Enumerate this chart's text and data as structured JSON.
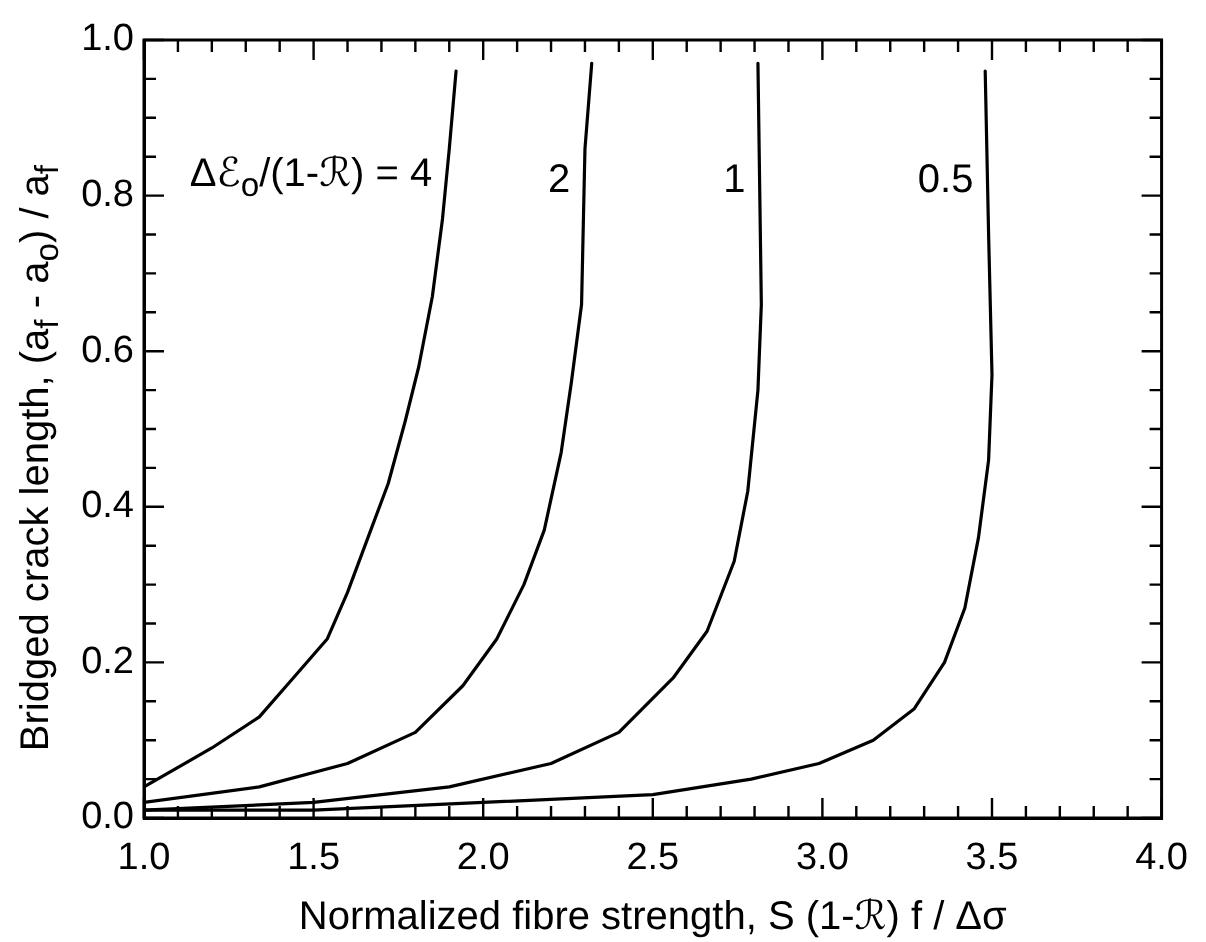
{
  "chart_data": {
    "type": "line",
    "xlabel": "Normalized fibre strength, S (1-ℛ) f / Δσ",
    "ylabel": "Bridged crack length, (a$_{f}$ - a$_{o}$) / a$_{f}$",
    "xlim": [
      1,
      4
    ],
    "ylim": [
      0,
      1
    ],
    "xticks": [
      {
        "value": 1,
        "label": "1.0"
      },
      {
        "value": 1.1,
        "label": null
      },
      {
        "value": 1.2,
        "label": null
      },
      {
        "value": 1.3,
        "label": null
      },
      {
        "value": 1.4,
        "label": null
      },
      1.5,
      {
        "value": 1.6,
        "label": null
      },
      {
        "value": 1.7,
        "label": null
      },
      {
        "value": 1.8,
        "label": null
      },
      {
        "value": 1.9,
        "label": null
      },
      {
        "value": 2,
        "label": "2.0"
      },
      {
        "value": 2.1,
        "label": null
      },
      {
        "value": 2.2,
        "label": null
      },
      {
        "value": 2.3,
        "label": null
      },
      {
        "value": 2.4,
        "label": null
      },
      2.5,
      {
        "value": 2.6,
        "label": null
      },
      {
        "value": 2.7,
        "label": null
      },
      {
        "value": 2.8,
        "label": null
      },
      {
        "value": 2.9,
        "label": null
      },
      {
        "value": 3,
        "label": "3.0"
      },
      {
        "value": 3.1,
        "label": null
      },
      {
        "value": 3.2,
        "label": null
      },
      {
        "value": 3.3,
        "label": null
      },
      {
        "value": 3.4,
        "label": null
      },
      3.5,
      {
        "value": 3.6,
        "label": null
      },
      {
        "value": 3.7,
        "label": null
      },
      {
        "value": 3.8,
        "label": null
      },
      {
        "value": 3.9,
        "label": null
      },
      {
        "value": 4,
        "label": "4.0"
      }
    ],
    "yticks": [
      {
        "value": 0,
        "label": "0.0"
      },
      {
        "value": 0.05,
        "label": null
      },
      {
        "value": 0.1,
        "label": null
      },
      {
        "value": 0.15,
        "label": null
      },
      0.2,
      {
        "value": 0.25,
        "label": null
      },
      {
        "value": 0.3,
        "label": null
      },
      {
        "value": 0.35,
        "label": null
      },
      0.4,
      {
        "value": 0.45,
        "label": null
      },
      {
        "value": 0.5,
        "label": null
      },
      {
        "value": 0.55,
        "label": null
      },
      0.6,
      {
        "value": 0.65,
        "label": null
      },
      {
        "value": 0.7,
        "label": null
      },
      {
        "value": 0.75,
        "label": null
      },
      0.8,
      {
        "value": 0.85,
        "label": null
      },
      {
        "value": 0.9,
        "label": null
      },
      {
        "value": 0.95,
        "label": null
      },
      {
        "value": 1,
        "label": "1.0"
      }
    ],
    "grid": false,
    "legend": false,
    "marker": "none",
    "line_style": "solid",
    "series": [
      {
        "name": "Δℰ$_{o}$/(1-ℛ) = 4",
        "color": "#000000",
        "x": [
          1.0,
          1.2,
          1.34,
          1.44,
          1.54,
          1.6,
          1.66,
          1.72,
          1.77,
          1.81,
          1.85,
          1.88,
          1.9,
          1.92
        ],
        "values": [
          0.04,
          0.09,
          0.13,
          0.18,
          0.23,
          0.29,
          0.36,
          0.43,
          0.51,
          0.58,
          0.67,
          0.77,
          0.86,
          0.96
        ]
      },
      {
        "name": "2",
        "color": "#000000",
        "x": [
          1.0,
          1.34,
          1.6,
          1.8,
          1.94,
          2.04,
          2.12,
          2.18,
          2.23,
          2.26,
          2.29,
          2.3,
          2.32
        ],
        "values": [
          0.02,
          0.04,
          0.07,
          0.11,
          0.17,
          0.23,
          0.3,
          0.37,
          0.47,
          0.56,
          0.66,
          0.86,
          0.97
        ]
      },
      {
        "name": "1",
        "color": "#000000",
        "x": [
          1.0,
          1.5,
          1.9,
          2.2,
          2.4,
          2.56,
          2.66,
          2.74,
          2.78,
          2.81,
          2.82,
          2.81
        ],
        "values": [
          0.01,
          0.02,
          0.04,
          0.07,
          0.11,
          0.18,
          0.24,
          0.33,
          0.42,
          0.55,
          0.66,
          0.97
        ]
      },
      {
        "name": "0.5",
        "color": "#000000",
        "x": [
          1.0,
          1.5,
          2.0,
          2.5,
          2.79,
          2.99,
          3.15,
          3.27,
          3.36,
          3.42,
          3.46,
          3.49,
          3.5,
          3.49,
          3.48
        ],
        "values": [
          0.01,
          0.01,
          0.02,
          0.03,
          0.05,
          0.07,
          0.1,
          0.14,
          0.2,
          0.27,
          0.36,
          0.46,
          0.57,
          0.75,
          0.96
        ]
      }
    ]
  }
}
